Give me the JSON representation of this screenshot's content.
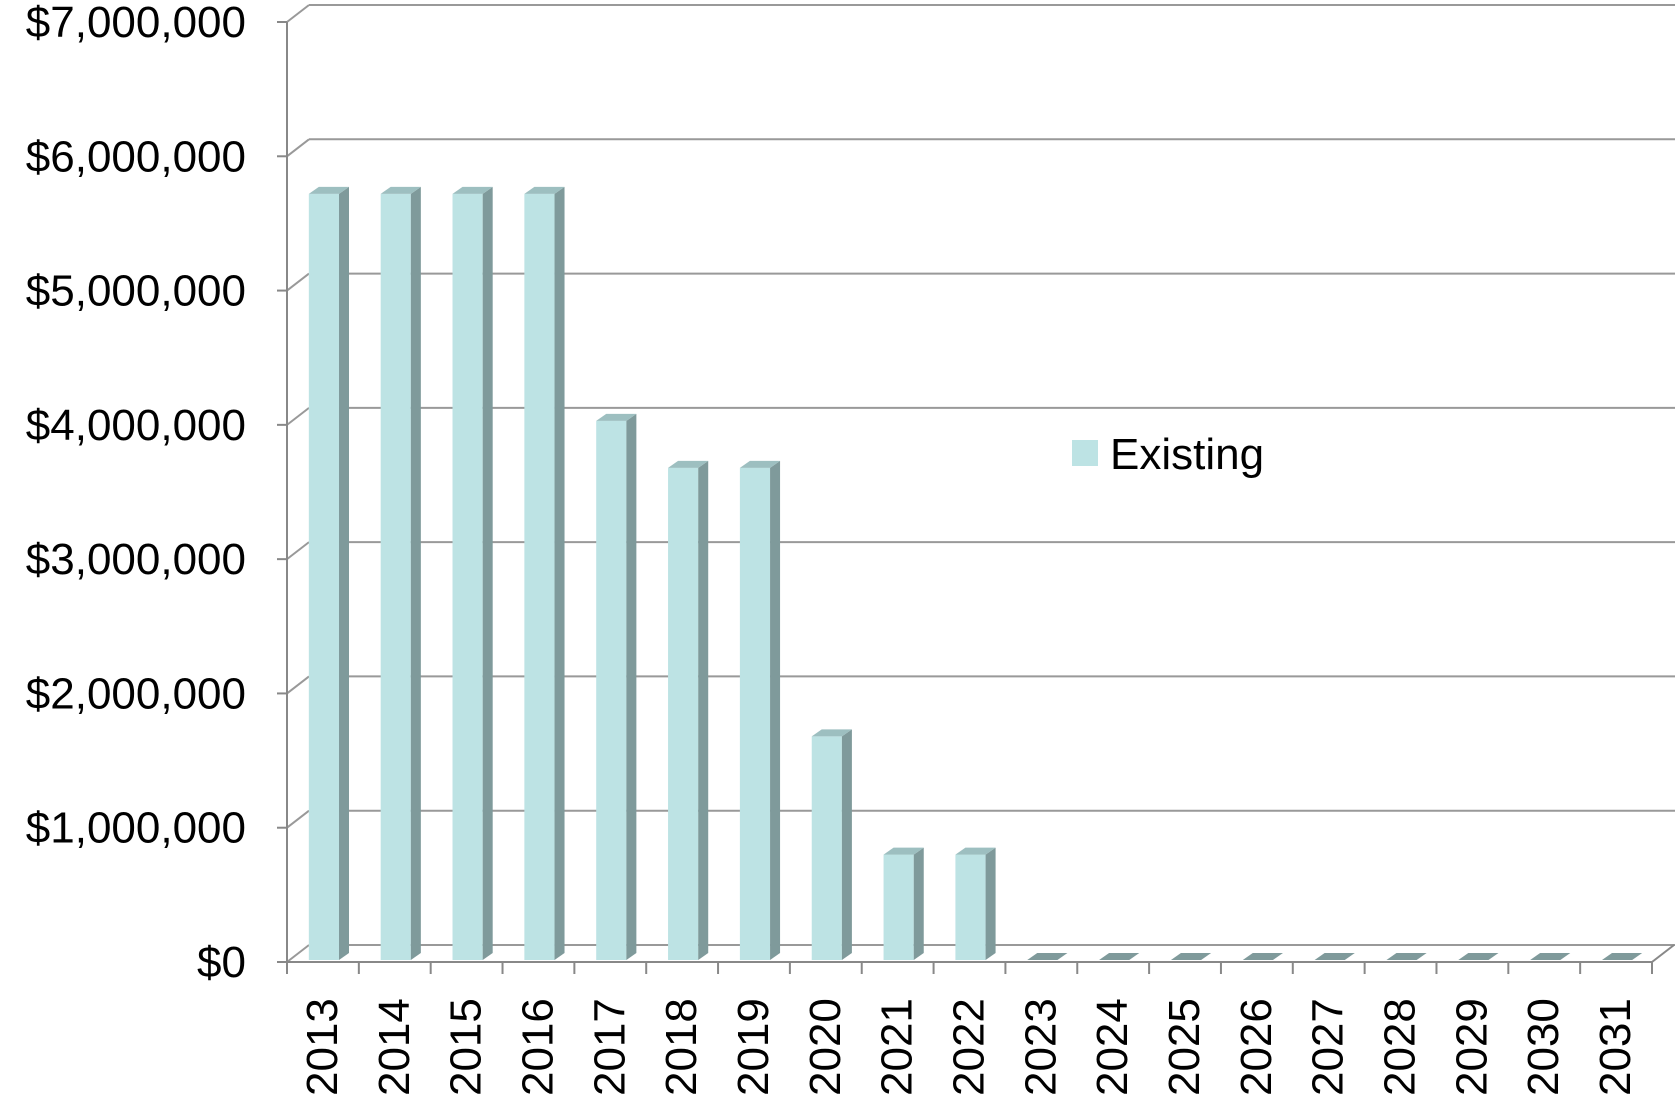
{
  "chart_data": {
    "type": "bar",
    "title": "",
    "xlabel": "",
    "ylabel": "",
    "categories": [
      "2013",
      "2014",
      "2015",
      "2016",
      "2017",
      "2018",
      "2019",
      "2020",
      "2021",
      "2022",
      "2023",
      "2024",
      "2025",
      "2026",
      "2027",
      "2028",
      "2029",
      "2030",
      "2031"
    ],
    "series": [
      {
        "name": "Existing",
        "values": [
          5720000,
          5720000,
          5720000,
          5720000,
          4030000,
          3680000,
          3680000,
          1680000,
          800000,
          800000,
          0,
          0,
          0,
          0,
          0,
          0,
          0,
          0,
          0
        ]
      }
    ],
    "ylim": [
      0,
      7000000
    ],
    "y_ticks": [
      {
        "value": 0,
        "label": "$0"
      },
      {
        "value": 1000000,
        "label": "$1,000,000"
      },
      {
        "value": 2000000,
        "label": "$2,000,000"
      },
      {
        "value": 3000000,
        "label": "$3,000,000"
      },
      {
        "value": 4000000,
        "label": "$4,000,000"
      },
      {
        "value": 5000000,
        "label": "$5,000,000"
      },
      {
        "value": 6000000,
        "label": "$6,000,000"
      },
      {
        "value": 7000000,
        "label": "$7,000,000"
      }
    ],
    "grid": true,
    "legend_position": "center-right",
    "colors": {
      "bar_front": "#bde3e4",
      "bar_side": "#7f9a9b",
      "bar_top": "#9dbfc0",
      "grid": "#999999",
      "axis": "#888888"
    }
  }
}
